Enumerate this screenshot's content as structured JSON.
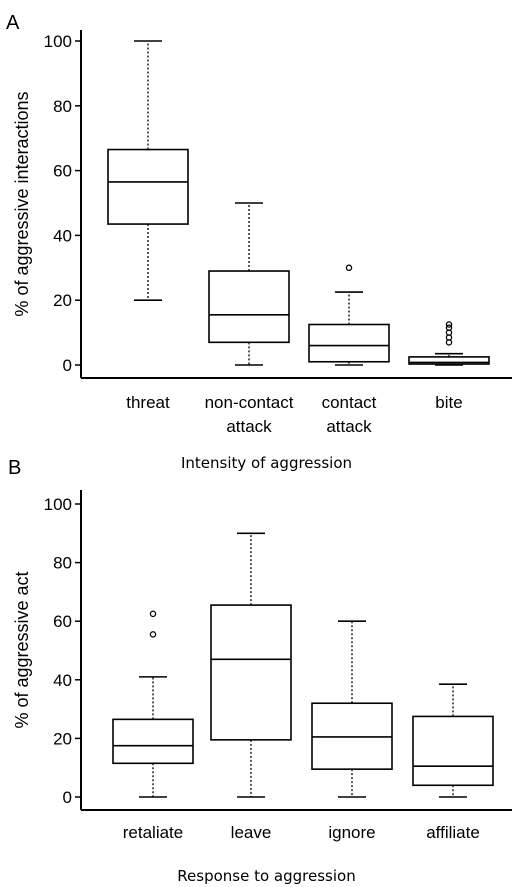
{
  "chart_data": [
    {
      "type": "boxplot",
      "panel_label": "A",
      "xlabel": "Intensity of aggression",
      "ylabel": "% of aggressive interactions",
      "ylim": [
        0,
        100
      ],
      "yticks": [
        "0",
        "20",
        "40",
        "60",
        "80",
        "100"
      ],
      "categories": [
        {
          "lines": [
            "threat"
          ],
          "min": 20,
          "q1": 43.5,
          "median": 56.5,
          "q3": 66.5,
          "max": 100,
          "outliers": []
        },
        {
          "lines": [
            "non-contact",
            "attack"
          ],
          "min": 0,
          "q1": 7,
          "median": 15.5,
          "q3": 29,
          "max": 50,
          "outliers": []
        },
        {
          "lines": [
            "contact",
            "attack"
          ],
          "min": 0,
          "q1": 1,
          "median": 6,
          "q3": 12.5,
          "max": 22.5,
          "outliers": [
            30
          ]
        },
        {
          "lines": [
            "bite"
          ],
          "min": 0,
          "q1": 0.3,
          "median": 0.8,
          "q3": 2.5,
          "max": 3.5,
          "outliers": [
            7,
            8.5,
            10,
            11.5,
            12.5
          ]
        }
      ]
    },
    {
      "type": "boxplot",
      "panel_label": "B",
      "xlabel": "Response to aggression",
      "ylabel": "% of aggressive act",
      "ylim": [
        0,
        100
      ],
      "yticks": [
        "0",
        "20",
        "40",
        "60",
        "80",
        "100"
      ],
      "categories": [
        {
          "lines": [
            "retaliate"
          ],
          "min": 0,
          "q1": 11.5,
          "median": 17.5,
          "q3": 26.5,
          "max": 41,
          "outliers": [
            55.5,
            62.5
          ]
        },
        {
          "lines": [
            "leave"
          ],
          "min": 0,
          "q1": 19.5,
          "median": 47,
          "q3": 65.5,
          "max": 90,
          "outliers": []
        },
        {
          "lines": [
            "ignore"
          ],
          "min": 0,
          "q1": 9.5,
          "median": 20.5,
          "q3": 32,
          "max": 60,
          "outliers": []
        },
        {
          "lines": [
            "affiliate"
          ],
          "min": 0,
          "q1": 4,
          "median": 10.5,
          "q3": 27.5,
          "max": 38.5,
          "outliers": []
        }
      ]
    }
  ]
}
